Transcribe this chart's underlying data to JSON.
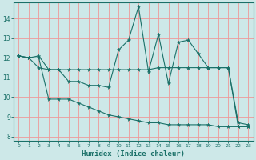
{
  "xlabel": "Humidex (Indice chaleur)",
  "bg_color": "#cde8e8",
  "grid_color": "#ee9999",
  "line_color": "#1a7068",
  "xlim": [
    -0.5,
    23.5
  ],
  "ylim": [
    7.8,
    14.8
  ],
  "yticks": [
    8,
    9,
    10,
    11,
    12,
    13,
    14
  ],
  "xticks": [
    0,
    1,
    2,
    3,
    4,
    5,
    6,
    7,
    8,
    9,
    10,
    11,
    12,
    13,
    14,
    15,
    16,
    17,
    18,
    19,
    20,
    21,
    22,
    23
  ],
  "top_y": [
    12.1,
    12.0,
    12.1,
    11.4,
    11.4,
    10.8,
    10.8,
    10.6,
    10.6,
    10.5,
    12.4,
    12.9,
    14.6,
    11.3,
    13.2,
    10.7,
    12.8,
    12.9,
    12.2,
    11.5,
    11.5,
    11.5,
    8.7,
    8.6
  ],
  "mid_y": [
    12.1,
    12.0,
    11.5,
    11.4,
    11.4,
    11.4,
    11.4,
    11.4,
    11.4,
    11.4,
    11.4,
    11.4,
    11.4,
    11.4,
    11.5,
    11.5,
    11.5,
    11.5,
    11.5,
    11.5,
    11.5,
    11.5,
    8.5,
    8.5
  ],
  "bot_y": [
    12.1,
    12.0,
    12.0,
    9.9,
    9.9,
    9.9,
    9.7,
    9.5,
    9.3,
    9.1,
    9.0,
    8.9,
    8.8,
    8.7,
    8.7,
    8.6,
    8.6,
    8.6,
    8.6,
    8.6,
    8.5,
    8.5,
    8.5,
    8.5
  ]
}
